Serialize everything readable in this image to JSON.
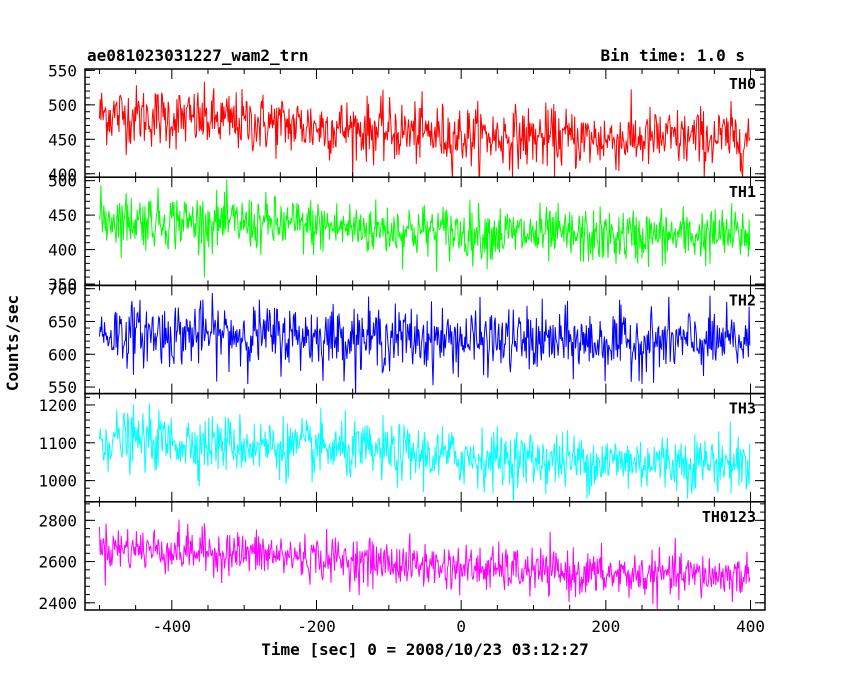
{
  "header": {
    "title": "ae081023031227_wam2_trn",
    "bin_time": "Bin time: 1.0 s"
  },
  "chart_data": {
    "type": "line",
    "xlabel": "Time [sec] 0 = 2008/10/23 03:12:27",
    "ylabel": "Counts/sec",
    "xlim": [
      -520,
      420
    ],
    "x_ticks": [
      -400,
      -200,
      0,
      200,
      400
    ],
    "x_range_data": [
      -500,
      399
    ],
    "bin_seconds": 1.0,
    "grid": false,
    "panels": [
      {
        "name": "TH0",
        "color": "#ff0000",
        "ylim": [
          395,
          552
        ],
        "y_ticks": [
          400,
          450,
          500,
          550
        ],
        "trend": [
          [
            -500,
            487
          ],
          [
            -300,
            475
          ],
          [
            0,
            455
          ],
          [
            200,
            450
          ],
          [
            399,
            452
          ]
        ],
        "noise_sd": 22
      },
      {
        "name": "TH1",
        "color": "#00ff00",
        "ylim": [
          348,
          505
        ],
        "y_ticks": [
          350,
          400,
          450,
          500
        ],
        "trend": [
          [
            -500,
            445
          ],
          [
            -300,
            438
          ],
          [
            0,
            425
          ],
          [
            200,
            418
          ],
          [
            399,
            422
          ]
        ],
        "noise_sd": 20
      },
      {
        "name": "TH2",
        "color": "#0000ff",
        "ylim": [
          540,
          705
        ],
        "y_ticks": [
          550,
          600,
          650,
          700
        ],
        "trend": [
          [
            -500,
            632
          ],
          [
            -300,
            630
          ],
          [
            0,
            622
          ],
          [
            200,
            618
          ],
          [
            399,
            618
          ]
        ],
        "noise_sd": 24
      },
      {
        "name": "TH3",
        "color": "#00ffff",
        "ylim": [
          944,
          1230
        ],
        "y_ticks": [
          1000,
          1100,
          1200
        ],
        "trend": [
          [
            -500,
            1110
          ],
          [
            -300,
            1095
          ],
          [
            0,
            1062
          ],
          [
            200,
            1050
          ],
          [
            399,
            1048
          ]
        ],
        "noise_sd": 38
      },
      {
        "name": "TH0123",
        "color": "#ff00ff",
        "ylim": [
          2365,
          2890
        ],
        "y_ticks": [
          2400,
          2600,
          2800
        ],
        "trend": [
          [
            -500,
            2670
          ],
          [
            -300,
            2640
          ],
          [
            0,
            2570
          ],
          [
            200,
            2535
          ],
          [
            399,
            2530
          ]
        ],
        "noise_sd": 55
      }
    ]
  }
}
